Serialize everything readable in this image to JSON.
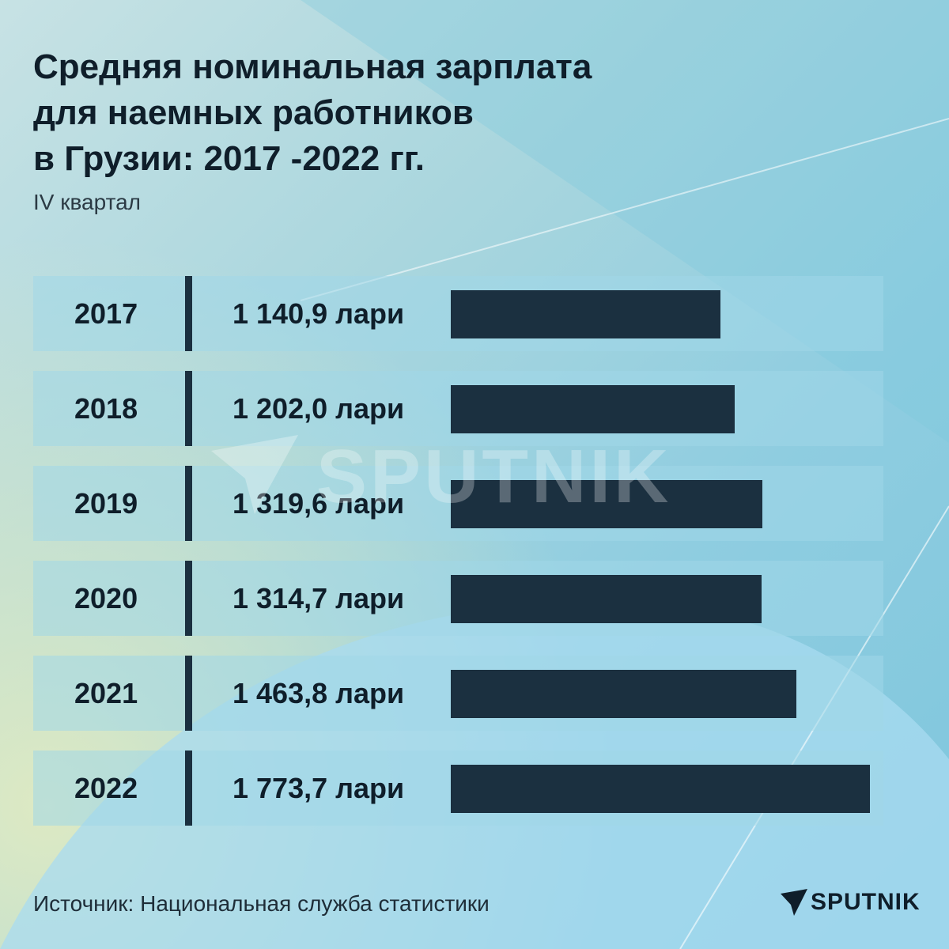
{
  "chart_data": {
    "type": "bar",
    "orientation": "horizontal",
    "title": "Средняя номинальная зарплата для наемных работников в Грузии: 2017 -2022 гг.",
    "title_lines": [
      "Средняя номинальная зарплата",
      "для наемных работников",
      "в Грузии: 2017 -2022 гг."
    ],
    "subtitle": "IV квартал",
    "categories": [
      "2017",
      "2018",
      "2019",
      "2020",
      "2021",
      "2022"
    ],
    "values": [
      1140.9,
      1202.0,
      1319.6,
      1314.7,
      1463.8,
      1773.7
    ],
    "value_labels": [
      "1 140,9 лари",
      "1 202,0 лари",
      "1 319,6 лари",
      "1 314,7 лари",
      "1 463,8 лари",
      "1 773,7 лари"
    ],
    "unit": "лари",
    "grid": false,
    "legend": "none"
  },
  "source": "Источник: Национальная служба статистики",
  "logo": {
    "text": "SPUTNIK",
    "icon": "sputnik-arrow-icon"
  },
  "watermark": "SPUTNIK",
  "colors": {
    "bar": "#1b3040",
    "text": "#0f1e2a",
    "row": "#a0d7e8"
  }
}
